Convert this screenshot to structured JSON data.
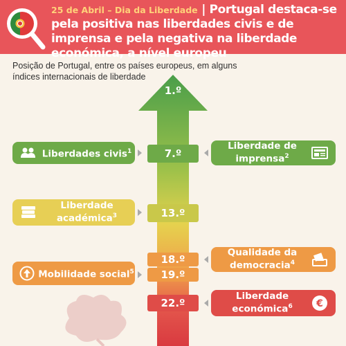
{
  "header": {
    "kicker": "25 de Abril – Dia da Liberdade",
    "separator": " | ",
    "title": "Portugal destaca-se pela positiva nas liberdades civis e de imprensa e pela negativa na liberdade económica, a nível europeu"
  },
  "subtitle": "Posição de Portugal, entre os países europeus, em alguns índices internacionais de liberdade",
  "top_rank": "1.º",
  "colors": {
    "header": "#e8555a",
    "green": "#6eaa48",
    "olive": "#c9c84a",
    "yellow": "#e7cf55",
    "orange": "#ee9a45",
    "red": "#df4c48"
  },
  "indices": [
    {
      "label": "Liberdades civis",
      "sup": "1",
      "rank": "7.º",
      "side": "left",
      "icon": "people-icon"
    },
    {
      "label": "Liberdade de imprensa",
      "sup": "2",
      "rank": "7.º",
      "side": "right",
      "icon": "newspaper-icon"
    },
    {
      "label": "Liberdade académica",
      "sup": "3",
      "rank": "13.º",
      "side": "left",
      "icon": "books-icon"
    },
    {
      "label": "Qualidade da democracia",
      "sup": "4",
      "rank": "18.º",
      "side": "right",
      "icon": "ballot-box-icon"
    },
    {
      "label": "Mobilidade social",
      "sup": "5",
      "rank": "19.º",
      "side": "left",
      "icon": "arrow-up-circle-icon"
    },
    {
      "label": "Liberdade económica",
      "sup": "6",
      "rank": "22.º",
      "side": "right",
      "icon": "euro-icon"
    }
  ]
}
